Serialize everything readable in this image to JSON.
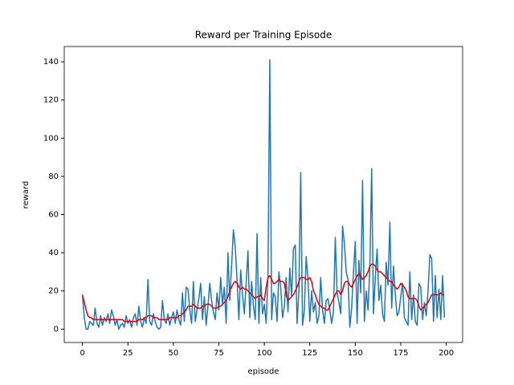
{
  "chart_data": {
    "type": "line",
    "title": "Reward per Training Episode",
    "xlabel": "episode",
    "ylabel": "reward",
    "x": [
      0,
      1,
      2,
      3,
      4,
      5,
      6,
      7,
      8,
      9,
      10,
      11,
      12,
      13,
      14,
      15,
      16,
      17,
      18,
      19,
      20,
      21,
      22,
      23,
      24,
      25,
      26,
      27,
      28,
      29,
      30,
      31,
      32,
      33,
      34,
      35,
      36,
      37,
      38,
      39,
      40,
      41,
      42,
      43,
      44,
      45,
      46,
      47,
      48,
      49,
      50,
      51,
      52,
      53,
      54,
      55,
      56,
      57,
      58,
      59,
      60,
      61,
      62,
      63,
      64,
      65,
      66,
      67,
      68,
      69,
      70,
      71,
      72,
      73,
      74,
      75,
      76,
      77,
      78,
      79,
      80,
      81,
      82,
      83,
      84,
      85,
      86,
      87,
      88,
      89,
      90,
      91,
      92,
      93,
      94,
      95,
      96,
      97,
      98,
      99,
      100,
      101,
      102,
      103,
      104,
      105,
      106,
      107,
      108,
      109,
      110,
      111,
      112,
      113,
      114,
      115,
      116,
      117,
      118,
      119,
      120,
      121,
      122,
      123,
      124,
      125,
      126,
      127,
      128,
      129,
      130,
      131,
      132,
      133,
      134,
      135,
      136,
      137,
      138,
      139,
      140,
      141,
      142,
      143,
      144,
      145,
      146,
      147,
      148,
      149,
      150,
      151,
      152,
      153,
      154,
      155,
      156,
      157,
      158,
      159,
      160,
      161,
      162,
      163,
      164,
      165,
      166,
      167,
      168,
      169,
      170,
      171,
      172,
      173,
      174,
      175,
      176,
      177,
      178,
      179,
      180,
      181,
      182,
      183,
      184,
      185,
      186,
      187,
      188,
      189,
      190,
      191,
      192,
      193,
      194,
      195,
      196,
      197,
      198,
      199
    ],
    "series": [
      {
        "color": "#1f77b4",
        "values": [
          18,
          6,
          0,
          0,
          4,
          3,
          2,
          11,
          3,
          1,
          7,
          2,
          6,
          4,
          8,
          3,
          10,
          7,
          2,
          5,
          0,
          2,
          3,
          1,
          7,
          3,
          5,
          1,
          6,
          8,
          2,
          12,
          4,
          1,
          6,
          3,
          26,
          4,
          2,
          8,
          4,
          1,
          0,
          1,
          15,
          5,
          3,
          8,
          2,
          6,
          9,
          3,
          10,
          5,
          2,
          19,
          4,
          22,
          21,
          10,
          3,
          25,
          4,
          10,
          16,
          24,
          5,
          17,
          2,
          12,
          24,
          15,
          9,
          5,
          19,
          10,
          27,
          13,
          22,
          3,
          40,
          15,
          33,
          52,
          43,
          26,
          5,
          31,
          18,
          8,
          24,
          41,
          6,
          25,
          12,
          5,
          50,
          3,
          27,
          8,
          13,
          3,
          28,
          141,
          5,
          19,
          17,
          4,
          30,
          22,
          6,
          12,
          27,
          9,
          32,
          17,
          42,
          44,
          3,
          20,
          82,
          2,
          10,
          38,
          26,
          4,
          20,
          9,
          14,
          3,
          7,
          27,
          10,
          3,
          15,
          16,
          10,
          3,
          9,
          48,
          19,
          14,
          8,
          54,
          45,
          30,
          26,
          1,
          11,
          30,
          46,
          3,
          36,
          19,
          78,
          4,
          20,
          10,
          32,
          84,
          8,
          27,
          42,
          15,
          23,
          8,
          4,
          35,
          23,
          56,
          11,
          33,
          18,
          7,
          9,
          17,
          24,
          6,
          4,
          2,
          30,
          5,
          18,
          4,
          2,
          24,
          22,
          5,
          14,
          7,
          20,
          39,
          37,
          4,
          28,
          6,
          21,
          5,
          28,
          6
        ]
      },
      {
        "color": "#e8000b",
        "values": [
          18,
          14,
          10,
          7,
          6,
          6,
          5,
          5,
          5,
          5,
          5,
          5,
          5,
          5,
          5,
          5,
          5,
          5,
          5,
          5,
          5,
          5,
          5,
          4,
          4,
          4,
          4,
          4,
          4,
          4,
          4,
          5,
          5,
          5,
          6,
          6,
          7,
          7,
          7,
          6,
          6,
          6,
          5,
          5,
          5,
          5,
          5,
          5,
          6,
          6,
          6,
          6,
          6,
          7,
          7,
          8,
          9,
          10,
          12,
          12,
          12,
          13,
          12,
          11,
          11,
          11,
          12,
          12,
          13,
          13,
          13,
          12,
          11,
          11,
          11,
          12,
          12,
          13,
          14,
          15,
          17,
          20,
          22,
          24,
          25,
          24,
          22,
          21,
          22,
          21,
          21,
          20,
          19,
          18,
          17,
          16,
          17,
          17,
          18,
          16,
          15,
          22,
          27,
          28,
          26,
          24,
          24,
          25,
          26,
          25,
          25,
          24,
          18,
          15,
          16,
          17,
          18,
          20,
          22,
          25,
          27,
          27,
          27,
          26,
          26,
          27,
          25,
          20,
          18,
          15,
          13,
          12,
          11,
          11,
          10,
          10,
          12,
          14,
          16,
          18,
          20,
          20,
          18,
          20,
          24,
          25,
          25,
          23,
          22,
          24,
          26,
          28,
          29,
          28,
          26,
          27,
          28,
          30,
          33,
          34,
          34,
          33,
          31,
          30,
          30,
          29,
          28,
          27,
          26,
          25,
          25,
          23,
          22,
          21,
          22,
          24,
          23,
          22,
          20,
          17,
          16,
          16,
          16,
          16,
          15,
          12,
          10,
          11,
          12,
          13,
          14,
          16,
          18,
          18,
          18,
          18,
          18,
          19,
          18,
          18
        ]
      }
    ],
    "xlim": [
      -10,
      209
    ],
    "ylim": [
      -7,
      148
    ],
    "xticks": [
      0,
      25,
      50,
      75,
      100,
      125,
      150,
      175,
      200
    ],
    "yticks": [
      0,
      20,
      40,
      60,
      80,
      100,
      120,
      140
    ],
    "grid": false
  }
}
